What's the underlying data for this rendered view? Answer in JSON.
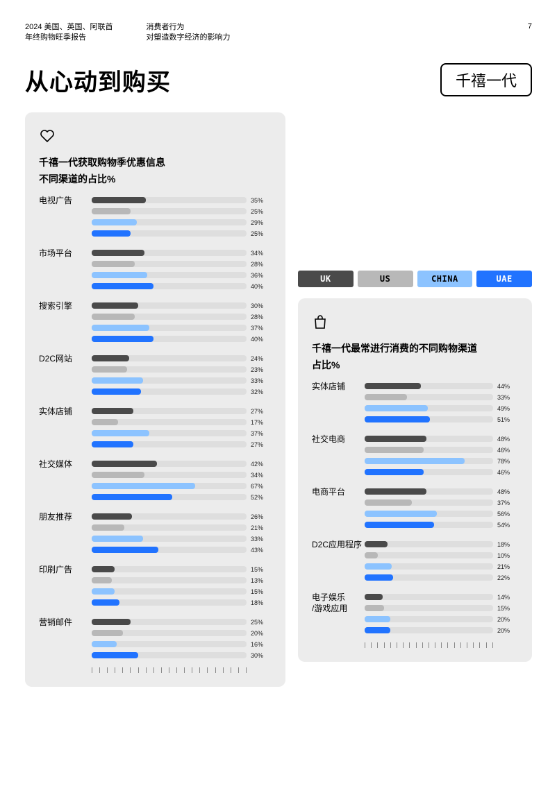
{
  "header": {
    "col1_line1": "2024 美国、英国、阿联酋",
    "col1_line2": "年终购物旺季报告",
    "col2_line1": "消费者行为",
    "col2_line2": "对塑造数字经济的影响力",
    "page_number": "7"
  },
  "title": "从心动到购买",
  "badge": "千禧一代",
  "colors": {
    "uk": "#4a4a4a",
    "us": "#b8b8b8",
    "china": "#8cc3ff",
    "uae": "#2173ff",
    "track": "#dedede",
    "card_bg": "#ececec",
    "legend_text_light": "#ffffff",
    "legend_text_dark": "#000000"
  },
  "legend": [
    {
      "key": "uk",
      "label": "UK"
    },
    {
      "key": "us",
      "label": "US"
    },
    {
      "key": "china",
      "label": "CHINA"
    },
    {
      "key": "uae",
      "label": "UAE"
    }
  ],
  "left_card": {
    "title_line1": "千禧一代获取购物季优惠信息",
    "title_line2": "不同渠道的占比%",
    "max": 100,
    "rows": [
      {
        "label": "电视广告",
        "v": [
          35,
          25,
          29,
          25
        ]
      },
      {
        "label": "市场平台",
        "v": [
          34,
          28,
          36,
          40
        ]
      },
      {
        "label": "搜索引擎",
        "v": [
          30,
          28,
          37,
          40
        ]
      },
      {
        "label": "D2C网站",
        "v": [
          24,
          23,
          33,
          32
        ]
      },
      {
        "label": "实体店铺",
        "v": [
          27,
          17,
          37,
          27
        ]
      },
      {
        "label": "社交媒体",
        "v": [
          42,
          34,
          67,
          52
        ]
      },
      {
        "label": "朋友推荐",
        "v": [
          26,
          21,
          33,
          43
        ]
      },
      {
        "label": "印刷广告",
        "v": [
          15,
          13,
          15,
          18
        ]
      },
      {
        "label": "营销邮件",
        "v": [
          25,
          20,
          16,
          30
        ]
      }
    ]
  },
  "right_card": {
    "title_line1": "千禧一代最常进行消费的不同购物渠道",
    "title_line2": "占比%",
    "max": 100,
    "rows": [
      {
        "label": "实体店铺",
        "v": [
          44,
          33,
          49,
          51
        ]
      },
      {
        "label": "社交电商",
        "v": [
          48,
          46,
          78,
          46
        ]
      },
      {
        "label": "电商平台",
        "v": [
          48,
          37,
          56,
          54
        ]
      },
      {
        "label": "D2C应用程序",
        "v": [
          18,
          10,
          21,
          22
        ]
      },
      {
        "label": "电子娱乐\n/游戏应用",
        "v": [
          14,
          15,
          20,
          20
        ]
      }
    ]
  },
  "ruler_ticks": 21
}
